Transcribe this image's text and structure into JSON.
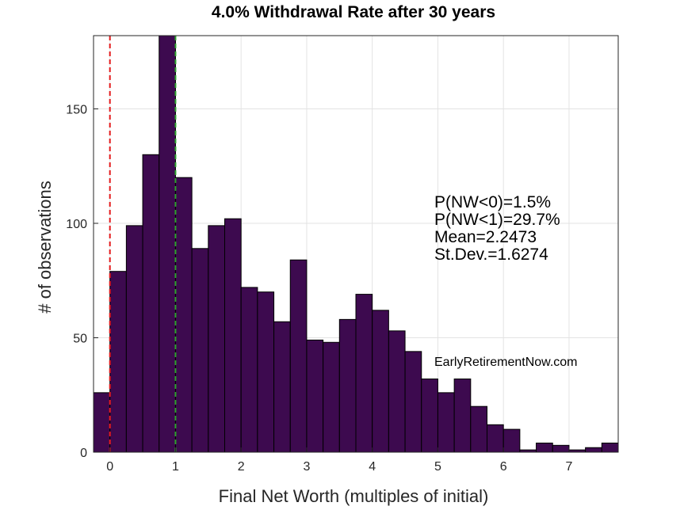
{
  "chart_data": {
    "type": "bar",
    "title": "4.0% Withdrawal Rate after 30 years",
    "xlabel": "Final Net Worth (multiples of initial)",
    "ylabel": "# of observations",
    "xlim": [
      -0.25,
      7.75
    ],
    "ylim": [
      0,
      182
    ],
    "xticks": [
      0,
      1,
      2,
      3,
      4,
      5,
      6,
      7
    ],
    "yticks": [
      0,
      50,
      100,
      150
    ],
    "bin_width": 0.25,
    "bins_start": [
      -0.25,
      0,
      0.25,
      0.5,
      0.75,
      1,
      1.25,
      1.5,
      1.75,
      2,
      2.25,
      2.5,
      2.75,
      3,
      3.25,
      3.5,
      3.75,
      4,
      4.25,
      4.5,
      4.75,
      5,
      5.25,
      5.5,
      5.75,
      6,
      6.25,
      6.5,
      6.75,
      7,
      7.25,
      7.5
    ],
    "values": [
      26,
      79,
      99,
      130,
      182,
      120,
      89,
      99,
      102,
      72,
      70,
      57,
      84,
      49,
      48,
      58,
      69,
      62,
      53,
      44,
      32,
      26,
      32,
      20,
      12,
      10,
      1,
      4,
      3,
      1,
      2,
      4
    ],
    "bar_color": "#3d0a4f",
    "reference_lines": [
      {
        "x": 0,
        "color": "#e41a1c",
        "style": "dashed"
      },
      {
        "x": 1,
        "color": "#2ca02c",
        "style": "dashed"
      }
    ],
    "annotations": [
      "P(NW<0)=1.5%",
      "P(NW<1)=29.7%",
      "Mean=2.2473",
      "St.Dev.=1.6274"
    ],
    "watermark": "EarlyRetirementNow.com",
    "grid": true
  }
}
